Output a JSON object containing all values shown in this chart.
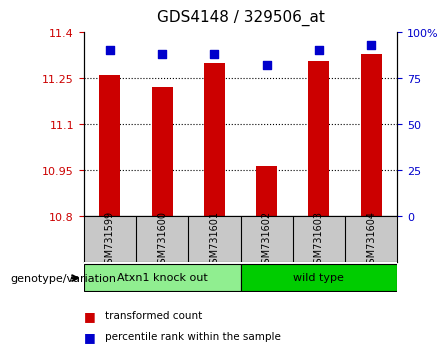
{
  "title": "GDS4148 / 329506_at",
  "samples": [
    "GSM731599",
    "GSM731600",
    "GSM731601",
    "GSM731602",
    "GSM731603",
    "GSM731604"
  ],
  "red_values": [
    11.26,
    11.22,
    11.3,
    10.965,
    11.305,
    11.33
  ],
  "blue_values": [
    90,
    88,
    88,
    82,
    90,
    93
  ],
  "ylim_left": [
    10.8,
    11.4
  ],
  "ylim_right": [
    0,
    100
  ],
  "yticks_left": [
    10.8,
    10.95,
    11.1,
    11.25,
    11.4
  ],
  "yticks_right": [
    0,
    25,
    50,
    75,
    100
  ],
  "ytick_labels_left": [
    "10.8",
    "10.95",
    "11.1",
    "11.25",
    "11.4"
  ],
  "ytick_labels_right": [
    "0",
    "25",
    "50",
    "75",
    "100%"
  ],
  "grid_lines": [
    10.95,
    11.1,
    11.25
  ],
  "groups": [
    {
      "label": "Atxn1 knock out",
      "indices": [
        0,
        1,
        2
      ],
      "color": "#90EE90"
    },
    {
      "label": "wild type",
      "indices": [
        3,
        4,
        5
      ],
      "color": "#00CC00"
    }
  ],
  "genotype_label": "genotype/variation",
  "legend_red": "transformed count",
  "legend_blue": "percentile rank within the sample",
  "bar_color": "#CC0000",
  "dot_color": "#0000CC",
  "tick_label_color_left": "#CC0000",
  "tick_label_color_right": "#0000CC",
  "bar_width": 0.4,
  "dot_size": 30,
  "label_area_color": "#C8C8C8"
}
